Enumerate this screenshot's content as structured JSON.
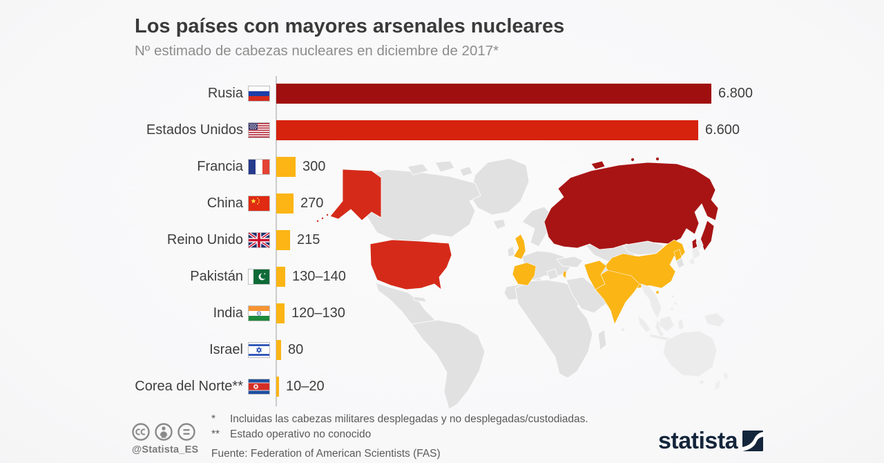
{
  "header": {
    "title": "Los países con mayores arsenales nucleares",
    "subtitle": "Nº estimado de cabezas nucleares en diciembre de 2017*"
  },
  "chart_data": {
    "type": "bar",
    "orientation": "horizontal",
    "title": "Los países con mayores arsenales nucleares",
    "subtitle": "Nº estimado de cabezas nucleares en diciembre de 2017*",
    "xlim": [
      0,
      6800
    ],
    "grid": false,
    "legend": "none",
    "categories": [
      "Rusia",
      "Estados Unidos",
      "Francia",
      "China",
      "Reino Unido",
      "Pakistán",
      "India",
      "Israel",
      "Corea del Norte**"
    ],
    "values": [
      6800,
      6600,
      300,
      270,
      215,
      140,
      130,
      80,
      20
    ],
    "value_labels": [
      "6.800",
      "6.600",
      "300",
      "270",
      "215",
      "130–140",
      "120–130",
      "80",
      "10–20"
    ],
    "rows": [
      {
        "country": "Rusia",
        "flag": "russia",
        "value": 6800,
        "value_label": "6.800",
        "color": "#a00f0f"
      },
      {
        "country": "Estados Unidos",
        "flag": "usa",
        "value": 6600,
        "value_label": "6.600",
        "color": "#d6230e"
      },
      {
        "country": "Francia",
        "flag": "france",
        "value": 300,
        "value_label": "300",
        "color": "#fcb514"
      },
      {
        "country": "China",
        "flag": "china",
        "value": 270,
        "value_label": "270",
        "color": "#fcb514"
      },
      {
        "country": "Reino Unido",
        "flag": "uk",
        "value": 215,
        "value_label": "215",
        "color": "#fcb514"
      },
      {
        "country": "Pakistán",
        "flag": "pakistan",
        "value": 140,
        "value_label": "130–140",
        "color": "#fcb514"
      },
      {
        "country": "India",
        "flag": "india",
        "value": 130,
        "value_label": "120–130",
        "color": "#fcb514"
      },
      {
        "country": "Israel",
        "flag": "israel",
        "value": 80,
        "value_label": "80",
        "color": "#fcb514"
      },
      {
        "country": "Corea del Norte**",
        "flag": "north-korea",
        "value": 20,
        "value_label": "10–20",
        "color": "#fcb514"
      }
    ]
  },
  "map": {
    "description": "world-map-with-nuclear-states-highlighted",
    "highlighted": {
      "dark_red": [
        "Rusia"
      ],
      "red": [
        "Estados Unidos"
      ],
      "orange": [
        "Francia",
        "China",
        "Reino Unido",
        "Pakistán",
        "India",
        "Israel",
        "Corea del Norte"
      ]
    }
  },
  "footer": {
    "license_icons": [
      "cc-icon",
      "attribution-icon",
      "equal-icon"
    ],
    "social_handle": "@Statista_ES",
    "footnotes": [
      {
        "marker": "*",
        "text": "Incluidas las cabezas militares desplegadas y no desplegadas/custodiadas."
      },
      {
        "marker": "**",
        "text": "Estado operativo no conocido"
      }
    ],
    "source": "Fuente: Federation of American Scientists (FAS)",
    "brand": "statista"
  },
  "colors": {
    "background": "#f8f8f9",
    "bar_dark_red": "#a00f0f",
    "bar_red": "#d6230e",
    "bar_orange": "#fcb514",
    "map_russia": "#a81414",
    "map_usa": "#d52a19",
    "map_orange": "#fbb515",
    "map_land": "#e1e1e1",
    "axis_line": "#cbcbcb",
    "title_text": "#3a3a3a",
    "subtitle_text": "#8d8d8d",
    "label_text": "#3e3e3e",
    "footnote_text": "#5a5a5a",
    "brand_navy": "#14263b"
  }
}
